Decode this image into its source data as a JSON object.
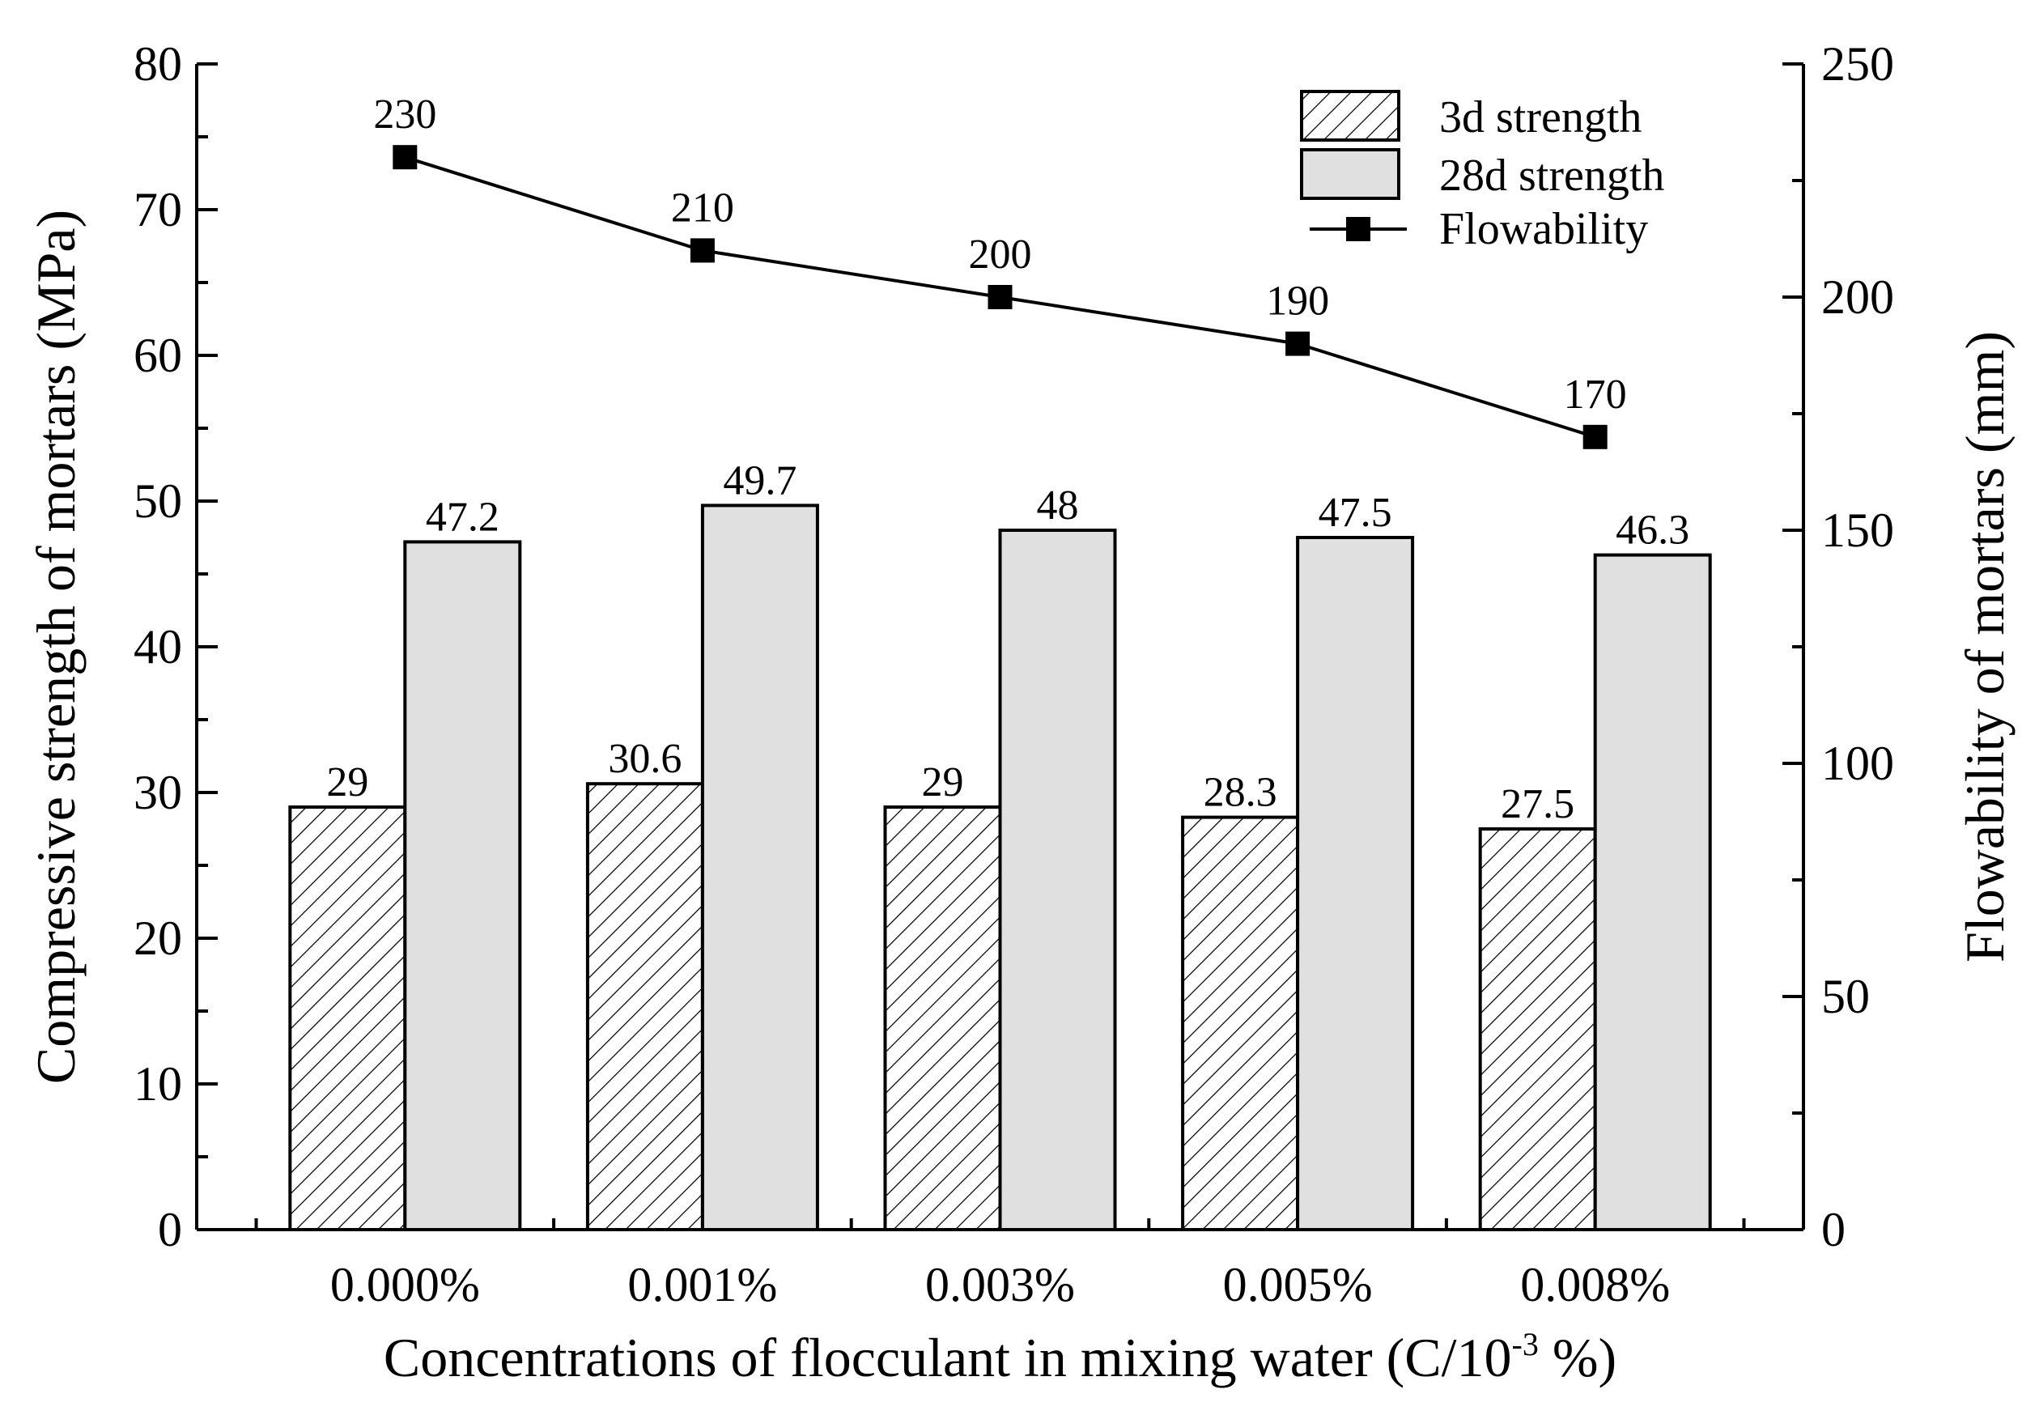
{
  "chart_data": {
    "type": "bar",
    "categories": [
      "0.000%",
      "0.001%",
      "0.003%",
      "0.005%",
      "0.008%"
    ],
    "series": [
      {
        "name": "3d strength",
        "kind": "bar",
        "axis": "left",
        "pattern": "hatched",
        "values": [
          29,
          30.6,
          29,
          28.3,
          27.5
        ],
        "labels": [
          "29",
          "30.6",
          "29",
          "28.3",
          "27.5"
        ]
      },
      {
        "name": "28d strength",
        "kind": "bar",
        "axis": "left",
        "pattern": "solid",
        "color": "#e0e0e0",
        "values": [
          47.2,
          49.7,
          48,
          47.5,
          46.3
        ],
        "labels": [
          "47.2",
          "49.7",
          "48",
          "47.5",
          "46.3"
        ]
      },
      {
        "name": "Flowability",
        "kind": "line",
        "axis": "right",
        "marker": "square",
        "values": [
          230,
          210,
          200,
          190,
          170
        ],
        "labels": [
          "230",
          "210",
          "200",
          "190",
          "170"
        ]
      }
    ],
    "xlabel_main": "Concentrations of flocculant in mixing water (C/10",
    "xlabel_sup": "-3",
    "xlabel_tail": " %)",
    "ylabel": "Compressive strength of mortars (MPa)",
    "y2label": "Flowability of mortars (mm)",
    "ylim": [
      0,
      80
    ],
    "y_ticks": [
      "0",
      "10",
      "20",
      "30",
      "40",
      "50",
      "60",
      "70",
      "80"
    ],
    "y2lim": [
      0,
      250
    ],
    "y2_ticks": [
      "0",
      "50",
      "100",
      "150",
      "200",
      "250"
    ],
    "legend_position": "top-right",
    "grid": false
  }
}
